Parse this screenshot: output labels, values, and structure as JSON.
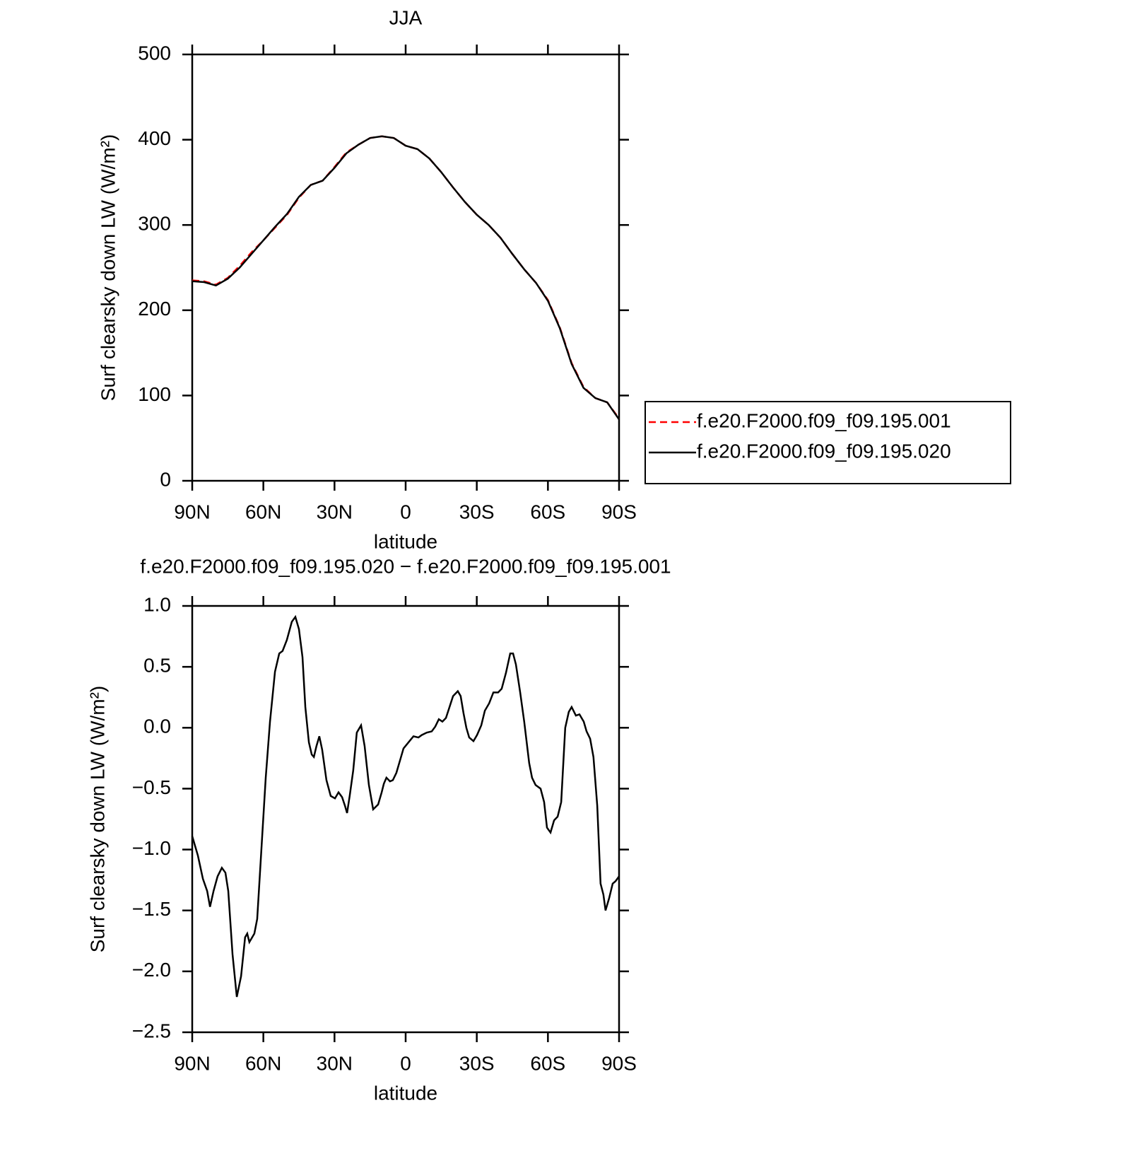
{
  "chart_data": [
    {
      "type": "line",
      "title": "JJA",
      "xlabel": "latitude",
      "ylabel": "Surf clearsky down LW (W/m²)",
      "xlim": [
        90,
        -90
      ],
      "xticks": [
        {
          "value": 90,
          "label": "90N"
        },
        {
          "value": 60,
          "label": "60N"
        },
        {
          "value": 30,
          "label": "30N"
        },
        0,
        {
          "value": -30,
          "label": "30S"
        },
        {
          "value": -60,
          "label": "60S"
        },
        {
          "value": -90,
          "label": "90S"
        }
      ],
      "ylim": [
        0,
        500
      ],
      "yticks": [
        0,
        100,
        200,
        300,
        400,
        500
      ],
      "legend": "right",
      "x": [
        90,
        85,
        80,
        75,
        70,
        65,
        60,
        55,
        50,
        45,
        40,
        35,
        30,
        25,
        20,
        15,
        10,
        5,
        0,
        -5,
        -10,
        -15,
        -20,
        -25,
        -30,
        -35,
        -40,
        -45,
        -50,
        -55,
        -60,
        -65,
        -70,
        -75,
        -80,
        -85,
        -90
      ],
      "series": [
        {
          "name": "f.e20.F2000.f09_f09.195.001",
          "color": "#ff0000",
          "linestyle": "dashed",
          "values": [
            235,
            234,
            230,
            238,
            252,
            268,
            282,
            297,
            312,
            332,
            347,
            352,
            368,
            385,
            394,
            402,
            404,
            402,
            393,
            389,
            378,
            362,
            344,
            327,
            312,
            300,
            285,
            266,
            248,
            232,
            212,
            180,
            138,
            110,
            97,
            92,
            73
          ]
        },
        {
          "name": "f.e20.F2000.f09_f09.195.020",
          "color": "#000000",
          "linestyle": "solid",
          "values": [
            234,
            233,
            229,
            237,
            250,
            266,
            282,
            298,
            313,
            333,
            347,
            352,
            367,
            384,
            394,
            402,
            404,
            402,
            393,
            389,
            378,
            362,
            344,
            327,
            312,
            300,
            285,
            266,
            248,
            232,
            211,
            179,
            137,
            109,
            97,
            92,
            72
          ]
        }
      ]
    },
    {
      "type": "line",
      "title": "f.e20.F2000.f09_f09.195.020 − f.e20.F2000.f09_f09.195.001",
      "xlabel": "latitude",
      "ylabel": "Surf clearsky down LW (W/m²)",
      "xlim": [
        90,
        -90
      ],
      "xticks": [
        {
          "value": 90,
          "label": "90N"
        },
        {
          "value": 60,
          "label": "60N"
        },
        {
          "value": 30,
          "label": "30N"
        },
        0,
        {
          "value": -30,
          "label": "30S"
        },
        {
          "value": -60,
          "label": "60S"
        },
        {
          "value": -90,
          "label": "90S"
        }
      ],
      "ylim": [
        -2.5,
        1.0
      ],
      "yticks": [
        {
          "value": -2.5,
          "label": "−2.5"
        },
        {
          "value": -2.0,
          "label": "−2.0"
        },
        {
          "value": -1.5,
          "label": "−1.5"
        },
        {
          "value": -1.0,
          "label": "−1.0"
        },
        {
          "value": -0.5,
          "label": "−0.5"
        },
        {
          "value": 0,
          "label": "0.0"
        },
        0.5,
        {
          "value": 1.0,
          "label": "1.0"
        }
      ],
      "x": [
        90,
        87.6,
        85.5,
        83.7,
        82.5,
        81,
        79.3,
        77.5,
        76,
        74.8,
        73,
        71.2,
        69.4,
        67.7,
        66.8,
        65.9,
        63.8,
        62.6,
        60.8,
        59,
        57.2,
        55.1,
        53.3,
        51.9,
        50.1,
        48,
        46.5,
        45,
        43.5,
        42.3,
        40.8,
        39.6,
        38.7,
        37.6,
        36.4,
        35.2,
        33.4,
        31.6,
        29.8,
        28.3,
        26.8,
        25.6,
        24.7,
        23.6,
        22.1,
        20.6,
        18.8,
        17.3,
        15.5,
        13.7,
        11.6,
        10.1,
        9.2,
        8.1,
        6.6,
        5.4,
        3.9,
        2.4,
        0.9,
        -1.2,
        -3.3,
        -5.4,
        -6.8,
        -8.9,
        -11,
        -12.5,
        -14,
        -15.5,
        -17,
        -18.5,
        -20,
        -22,
        -23.2,
        -24.4,
        -25.6,
        -26.8,
        -28.6,
        -30.1,
        -31.9,
        -33.4,
        -35.2,
        -37,
        -39,
        -40.5,
        -42.3,
        -44.1,
        -45.3,
        -46.5,
        -48.3,
        -50,
        -52.1,
        -53.3,
        -54.8,
        -56.9,
        -58.4,
        -59.6,
        -61.1,
        -62.6,
        -64.1,
        -65.6,
        -67.3,
        -68.8,
        -70,
        -71.8,
        -73.3,
        -75.1,
        -76.3,
        -77.8,
        -79.2,
        -80.8,
        -82.2,
        -83.4,
        -84.3,
        -85.8,
        -87.3,
        -88.5,
        -90
      ],
      "series": [
        {
          "name": null,
          "color": "#000000",
          "linestyle": "solid",
          "values": [
            -0.89,
            -1.05,
            -1.24,
            -1.34,
            -1.47,
            -1.34,
            -1.22,
            -1.15,
            -1.19,
            -1.34,
            -1.86,
            -2.21,
            -2.04,
            -1.72,
            -1.69,
            -1.76,
            -1.69,
            -1.57,
            -0.99,
            -0.41,
            0.05,
            0.46,
            0.61,
            0.63,
            0.72,
            0.87,
            0.91,
            0.81,
            0.58,
            0.17,
            -0.12,
            -0.22,
            -0.24,
            -0.15,
            -0.07,
            -0.18,
            -0.43,
            -0.56,
            -0.58,
            -0.53,
            -0.57,
            -0.64,
            -0.7,
            -0.56,
            -0.35,
            -0.04,
            0.02,
            -0.15,
            -0.47,
            -0.67,
            -0.63,
            -0.53,
            -0.46,
            -0.41,
            -0.44,
            -0.43,
            -0.37,
            -0.27,
            -0.17,
            -0.12,
            -0.07,
            -0.08,
            -0.06,
            -0.04,
            -0.03,
            0.01,
            0.07,
            0.05,
            0.08,
            0.17,
            0.26,
            0.3,
            0.26,
            0.12,
            0.0,
            -0.08,
            -0.11,
            -0.06,
            0.02,
            0.14,
            0.2,
            0.29,
            0.29,
            0.32,
            0.45,
            0.61,
            0.61,
            0.52,
            0.29,
            0.05,
            -0.29,
            -0.41,
            -0.47,
            -0.5,
            -0.61,
            -0.82,
            -0.86,
            -0.76,
            -0.73,
            -0.61,
            0.0,
            0.13,
            0.17,
            0.1,
            0.11,
            0.05,
            -0.03,
            -0.09,
            -0.24,
            -0.64,
            -1.28,
            -1.37,
            -1.5,
            -1.4,
            -1.28,
            -1.26,
            -1.22
          ]
        }
      ]
    }
  ]
}
